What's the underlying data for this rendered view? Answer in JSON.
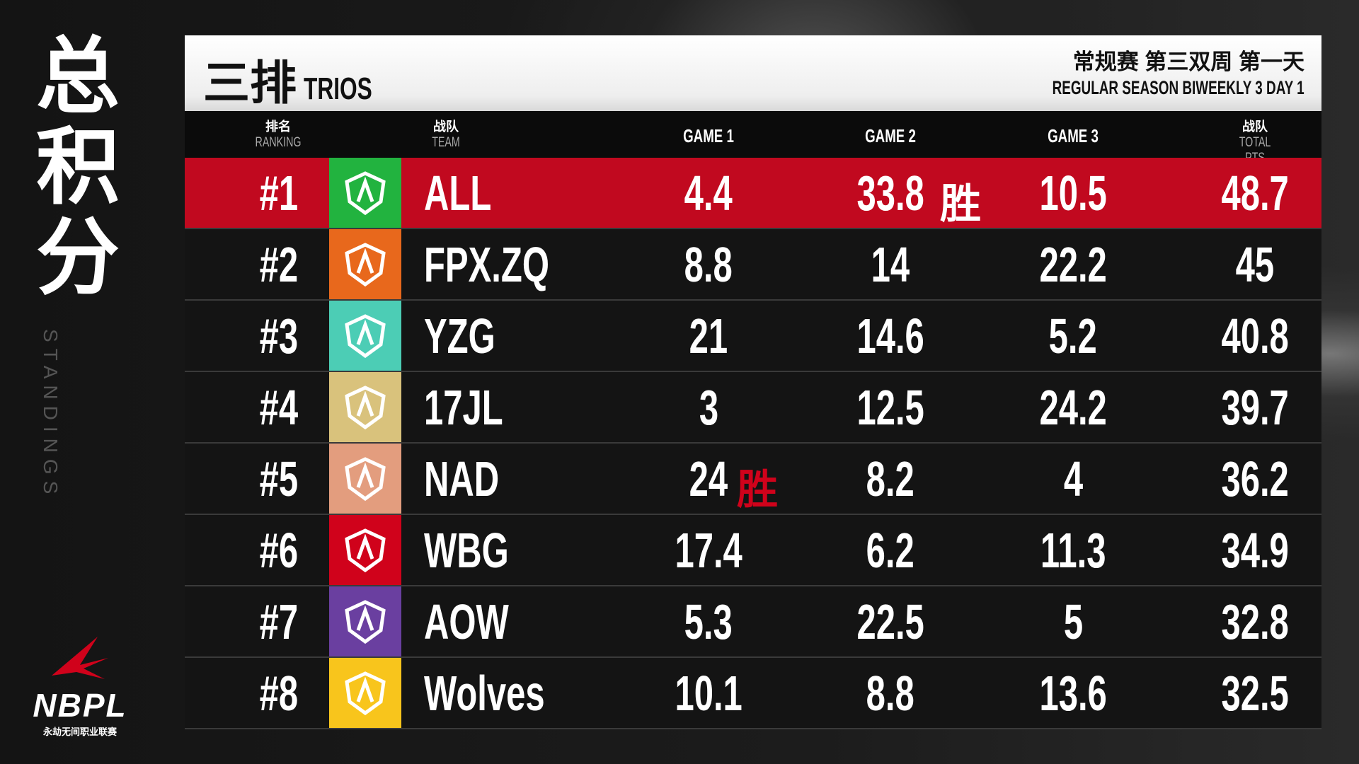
{
  "side": {
    "title": "总积分",
    "subtitle": "STANDINGS",
    "logo_text": "NBPL",
    "logo_sub": "永劫无间职业联赛"
  },
  "header": {
    "title_cn": "三排",
    "title_en": "TRIOS",
    "event_cn": "常规赛 第三双周 第一天",
    "event_en": "REGULAR SEASON BIWEEKLY 3 DAY 1"
  },
  "columns": {
    "rank_cn": "排名",
    "rank_en": "RANKING",
    "team_cn": "战队",
    "team_en": "TEAM",
    "game1": "GAME 1",
    "game2": "GAME 2",
    "game3": "GAME 3",
    "total_cn": "战队",
    "total_en": "TOTAL PTS"
  },
  "win_mark": "胜",
  "rows": [
    {
      "rank": "#1",
      "team": "ALL",
      "color": "#22b33f",
      "g1": "4.4",
      "g2": "33.8",
      "g3": "10.5",
      "total": "48.7",
      "win": "g2"
    },
    {
      "rank": "#2",
      "team": "FPX.ZQ",
      "color": "#e8681c",
      "g1": "8.8",
      "g2": "14",
      "g3": "22.2",
      "total": "45"
    },
    {
      "rank": "#3",
      "team": "YZG",
      "color": "#4ccdb5",
      "g1": "21",
      "g2": "14.6",
      "g3": "5.2",
      "total": "40.8"
    },
    {
      "rank": "#4",
      "team": "17JL",
      "color": "#d9c27c",
      "g1": "3",
      "g2": "12.5",
      "g3": "24.2",
      "total": "39.7"
    },
    {
      "rank": "#5",
      "team": "NAD",
      "color": "#e39d7e",
      "g1": "24",
      "g2": "8.2",
      "g3": "4",
      "total": "36.2",
      "win": "g1"
    },
    {
      "rank": "#6",
      "team": "WBG",
      "color": "#d0021b",
      "g1": "17.4",
      "g2": "6.2",
      "g3": "11.3",
      "total": "34.9"
    },
    {
      "rank": "#7",
      "team": "AOW",
      "color": "#6a3fa0",
      "g1": "5.3",
      "g2": "22.5",
      "g3": "5",
      "total": "32.8"
    },
    {
      "rank": "#8",
      "team": "Wolves",
      "color": "#f8c51c",
      "g1": "10.1",
      "g2": "8.8",
      "g3": "13.6",
      "total": "32.5"
    }
  ],
  "colors": {
    "highlight": "#c1091f",
    "win_mark": "#d0021b"
  }
}
